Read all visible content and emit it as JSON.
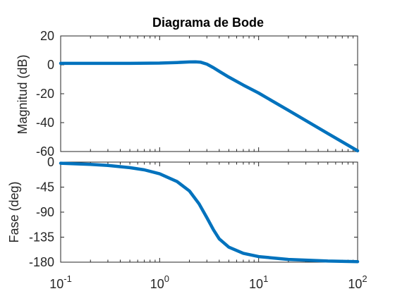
{
  "chart_data": [
    {
      "type": "line",
      "title": "Diagrama de Bode",
      "ylabel": "Magnitud (dB)",
      "xscale": "log",
      "xlim": [
        0.1,
        100
      ],
      "ylim": [
        -60,
        20
      ],
      "yticks": [
        20,
        0,
        -20,
        -40,
        -60
      ],
      "xtick_labels": [],
      "grid": false,
      "color": "#0072BD",
      "series": [
        {
          "x": [
            0.1,
            0.2,
            0.5,
            1.0,
            1.5,
            2.0,
            2.3,
            2.6,
            3.0,
            3.5,
            4.0,
            5.0,
            7.0,
            10,
            20,
            50,
            100
          ],
          "values": [
            1,
            1,
            1,
            1.2,
            1.6,
            2.0,
            2.1,
            1.8,
            0.5,
            -2.0,
            -4.5,
            -8.5,
            -14.0,
            -19.5,
            -31.5,
            -47.5,
            -59.5
          ]
        }
      ]
    },
    {
      "type": "line",
      "title": "",
      "ylabel": "Fase (deg)",
      "xscale": "log",
      "xlim": [
        0.1,
        100
      ],
      "ylim": [
        -180,
        0
      ],
      "yticks": [
        0,
        -45,
        -90,
        -135,
        -180
      ],
      "xtick_labels": [
        {
          "base": "10",
          "exp": "-1",
          "value": 0.1
        },
        {
          "base": "10",
          "exp": "0",
          "value": 1
        },
        {
          "base": "10",
          "exp": "1",
          "value": 10
        },
        {
          "base": "10",
          "exp": "2",
          "value": 100
        }
      ],
      "grid": false,
      "color": "#0072BD",
      "series": [
        {
          "x": [
            0.1,
            0.2,
            0.3,
            0.5,
            0.7,
            1.0,
            1.5,
            2.0,
            2.5,
            3.0,
            3.5,
            4.0,
            5.0,
            7.0,
            10,
            20,
            50,
            100
          ],
          "values": [
            -2,
            -4,
            -6,
            -10,
            -14,
            -21,
            -35,
            -52,
            -75,
            -100,
            -122,
            -138,
            -153,
            -164,
            -170,
            -175,
            -178,
            -179
          ]
        }
      ]
    }
  ]
}
